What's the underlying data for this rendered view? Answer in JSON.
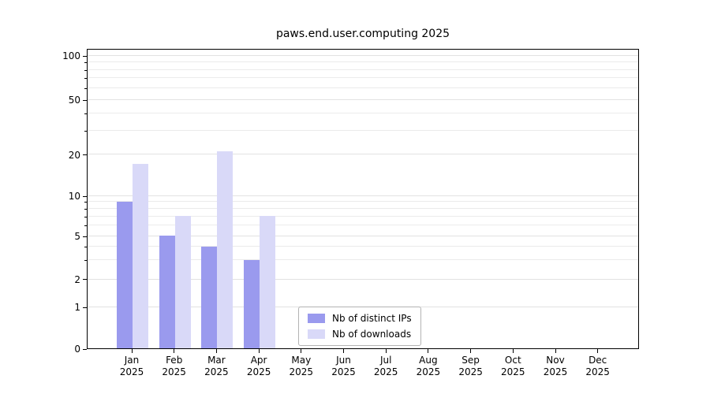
{
  "chart_data": {
    "type": "bar",
    "title": "paws.end.user.computing 2025",
    "categories": [
      "Jan 2025",
      "Feb 2025",
      "Mar 2025",
      "Apr 2025",
      "May 2025",
      "Jun 2025",
      "Jul 2025",
      "Aug 2025",
      "Sep 2025",
      "Oct 2025",
      "Nov 2025",
      "Dec 2025"
    ],
    "series": [
      {
        "name": "Nb of distinct IPs",
        "color": "#9a9aee",
        "values": [
          9,
          5,
          4,
          3,
          0,
          0,
          0,
          0,
          0,
          0,
          0,
          0
        ]
      },
      {
        "name": "Nb of downloads",
        "color": "#d9d9f8",
        "values": [
          17,
          7,
          21,
          7,
          0,
          0,
          0,
          0,
          0,
          0,
          0,
          0
        ]
      }
    ],
    "yscale": "symlog",
    "y_ticks": [
      0,
      1,
      2,
      5,
      10,
      20,
      50,
      100
    ],
    "y_minor_gridlines": [
      3,
      4,
      6,
      7,
      8,
      9,
      30,
      40,
      60,
      70,
      80,
      90
    ],
    "ylim": [
      0,
      100
    ],
    "xlabel": "",
    "ylabel": "",
    "grid": true,
    "legend_position": "lower-center-inside"
  },
  "colors": {
    "grid_major": "#e2e2e2",
    "grid_minor": "#ebebeb",
    "axis": "#000000",
    "background": "#ffffff"
  }
}
